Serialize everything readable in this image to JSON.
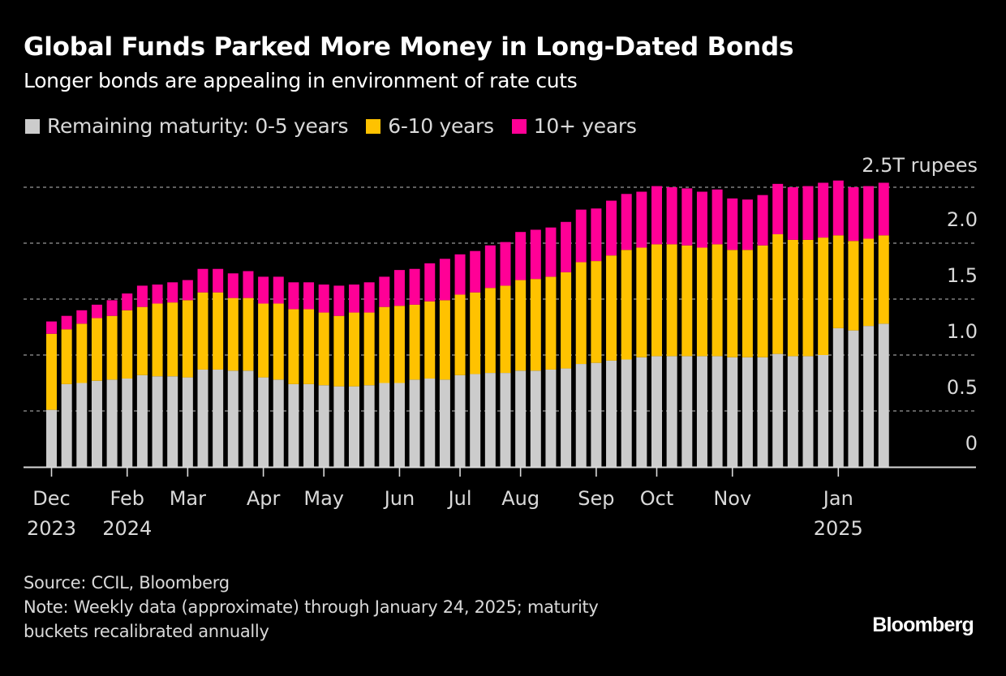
{
  "header": {
    "title": "Global Funds Parked More Money in Long-Dated Bonds",
    "subtitle": "Longer bonds are appealing in environment of rate cuts"
  },
  "footer": {
    "source": "Source: CCIL, Bloomberg",
    "note_line1": "Note: Weekly data (approximate) through January 24, 2025; maturity",
    "note_line2": "buckets recalibrated annually",
    "logo": "Bloomberg"
  },
  "chart_data": {
    "type": "bar",
    "stacked": true,
    "title": "Global Funds Parked More Money in Long-Dated Bonds",
    "subtitle": "Longer bonds are appealing in environment of rate cuts",
    "xlabel": "",
    "ylabel": "",
    "unit_label": "2.5T rupees",
    "ylim": [
      0,
      2.5
    ],
    "yticks": [
      0,
      0.5,
      1.0,
      1.5,
      2.0,
      2.5
    ],
    "ytick_labels": [
      "0",
      "0.5",
      "1.0",
      "1.5",
      "2.0",
      "2.5T rupees"
    ],
    "grid": true,
    "y_axis_side": "right",
    "legend_position": "top-left",
    "x_ticks": [
      {
        "index": 0,
        "label": "Dec",
        "year": "2023"
      },
      {
        "index": 5,
        "label": "Feb",
        "year": "2024"
      },
      {
        "index": 9,
        "label": "Mar",
        "year": ""
      },
      {
        "index": 14,
        "label": "Apr",
        "year": ""
      },
      {
        "index": 18,
        "label": "May",
        "year": ""
      },
      {
        "index": 23,
        "label": "Jun",
        "year": ""
      },
      {
        "index": 27,
        "label": "Jul",
        "year": ""
      },
      {
        "index": 31,
        "label": "Aug",
        "year": ""
      },
      {
        "index": 36,
        "label": "Sep",
        "year": ""
      },
      {
        "index": 40,
        "label": "Oct",
        "year": ""
      },
      {
        "index": 45,
        "label": "Nov",
        "year": ""
      },
      {
        "index": 52,
        "label": "Jan",
        "year": "2025"
      }
    ],
    "series": [
      {
        "name": "Remaining maturity: 0-5 years",
        "legend_label": "Remaining maturity: 0-5 years",
        "color": "#cccccc",
        "values": [
          0.51,
          0.74,
          0.75,
          0.77,
          0.78,
          0.79,
          0.82,
          0.81,
          0.81,
          0.8,
          0.87,
          0.87,
          0.86,
          0.86,
          0.8,
          0.78,
          0.74,
          0.74,
          0.73,
          0.72,
          0.72,
          0.73,
          0.75,
          0.75,
          0.78,
          0.79,
          0.78,
          0.82,
          0.83,
          0.84,
          0.84,
          0.86,
          0.86,
          0.87,
          0.88,
          0.92,
          0.93,
          0.95,
          0.96,
          0.98,
          0.99,
          0.99,
          0.99,
          0.99,
          0.99,
          0.98,
          0.98,
          0.98,
          1.01,
          0.99,
          0.99,
          1.0,
          1.24,
          1.22,
          1.26,
          1.28
        ]
      },
      {
        "name": "6-10 years",
        "legend_label": "6-10 years",
        "color": "#ffc200",
        "values": [
          0.68,
          0.49,
          0.53,
          0.56,
          0.57,
          0.61,
          0.61,
          0.65,
          0.66,
          0.69,
          0.69,
          0.69,
          0.65,
          0.65,
          0.66,
          0.68,
          0.67,
          0.67,
          0.65,
          0.63,
          0.66,
          0.65,
          0.68,
          0.69,
          0.67,
          0.69,
          0.71,
          0.72,
          0.73,
          0.76,
          0.78,
          0.81,
          0.82,
          0.83,
          0.86,
          0.91,
          0.91,
          0.94,
          0.98,
          0.98,
          1.0,
          1.0,
          0.99,
          0.97,
          1.0,
          0.96,
          0.96,
          1.0,
          1.07,
          1.04,
          1.04,
          1.05,
          0.83,
          0.8,
          0.78,
          0.79
        ]
      },
      {
        "name": "10+ years",
        "legend_label": "10+ years",
        "color": "#ff0096",
        "values": [
          0.11,
          0.12,
          0.12,
          0.12,
          0.14,
          0.15,
          0.19,
          0.17,
          0.18,
          0.18,
          0.21,
          0.21,
          0.22,
          0.24,
          0.24,
          0.24,
          0.24,
          0.24,
          0.25,
          0.27,
          0.25,
          0.27,
          0.27,
          0.32,
          0.32,
          0.34,
          0.37,
          0.36,
          0.37,
          0.38,
          0.39,
          0.43,
          0.44,
          0.44,
          0.45,
          0.47,
          0.47,
          0.49,
          0.5,
          0.5,
          0.52,
          0.51,
          0.51,
          0.5,
          0.49,
          0.46,
          0.45,
          0.45,
          0.45,
          0.47,
          0.48,
          0.49,
          0.49,
          0.48,
          0.47,
          0.47
        ]
      }
    ]
  }
}
